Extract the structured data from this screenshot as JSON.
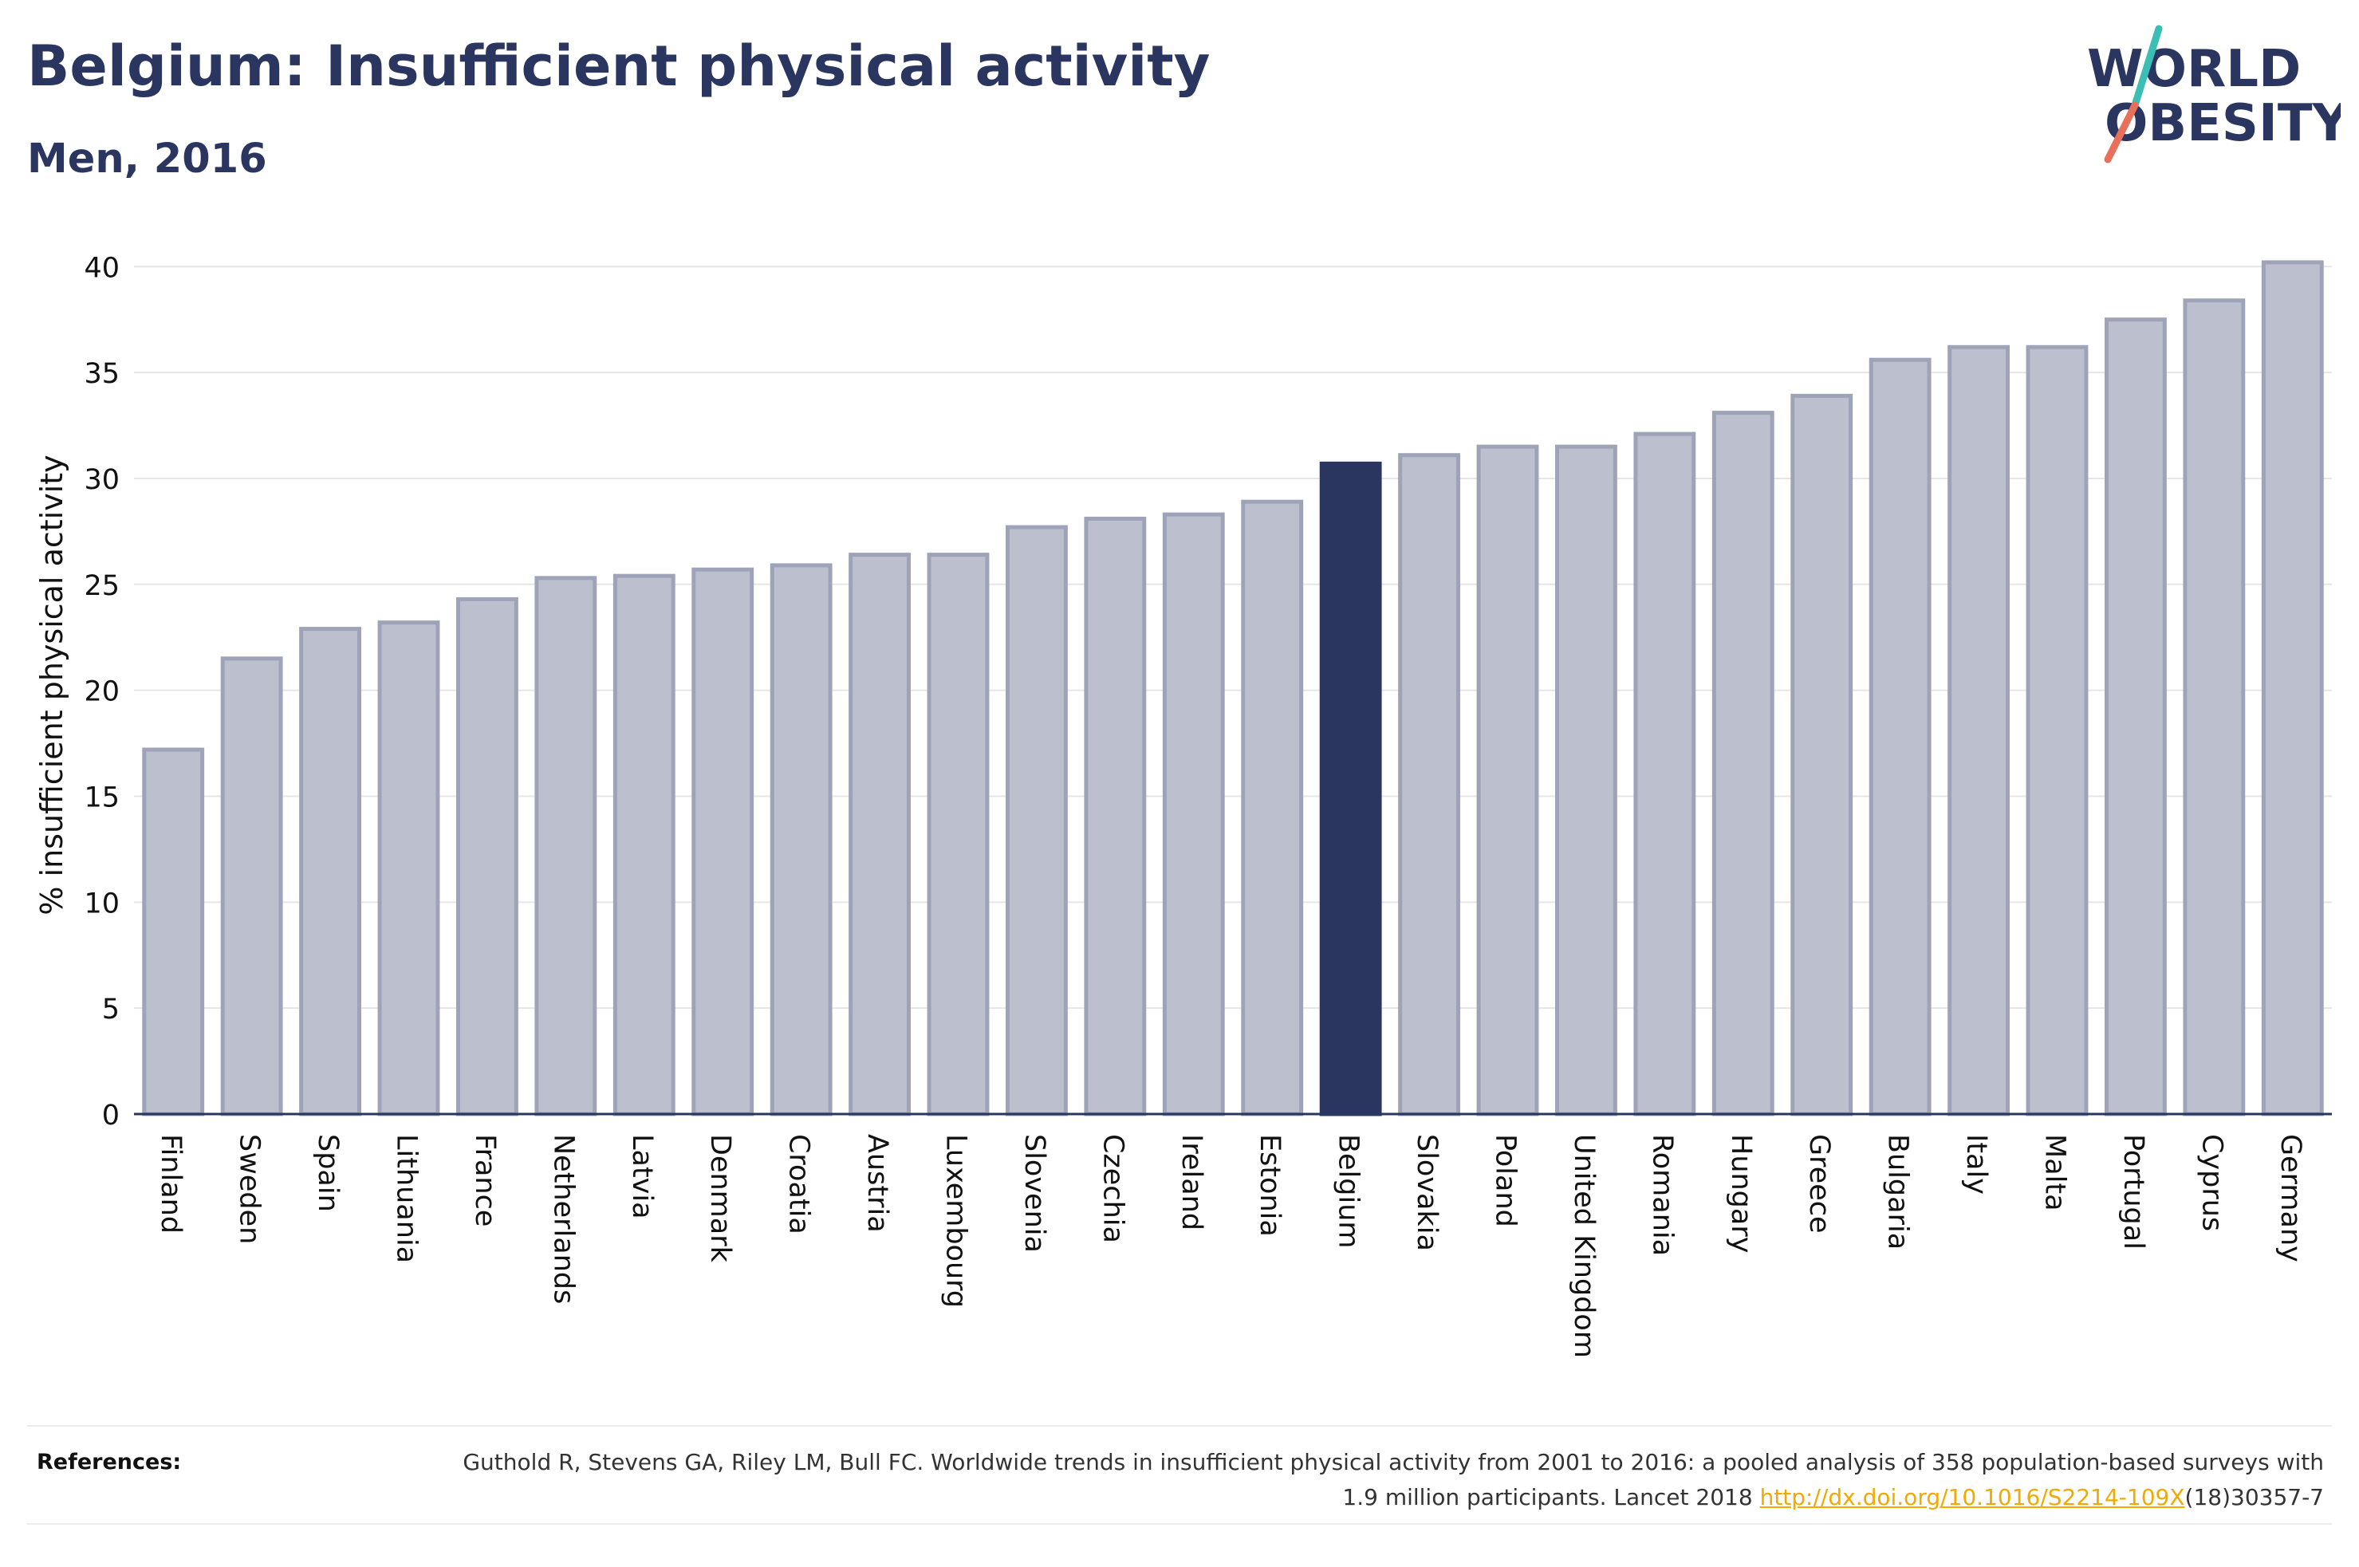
{
  "title": "Belgium: Insufficient physical activity",
  "subtitle": "Men, 2016",
  "logo": {
    "line1": "WORLD",
    "line2": "OBESITY",
    "accent_colors": [
      "#3bbfb5",
      "#e8705a"
    ]
  },
  "chart_data": {
    "type": "bar",
    "title": "",
    "xlabel": "",
    "ylabel": "% insufficient physical activity",
    "ylim": [
      0,
      40.5
    ],
    "yticks": [
      0,
      5,
      10,
      15,
      20,
      25,
      30,
      35,
      40
    ],
    "grid": true,
    "highlight": "Belgium",
    "colors": {
      "bar": "#bcc0ce",
      "bar_edge": "#9ea3b8",
      "highlight": "#2a3560",
      "axis": "#2a3560",
      "grid": "#e6e6e6"
    },
    "categories": [
      "Finland",
      "Sweden",
      "Spain",
      "Lithuania",
      "France",
      "Netherlands",
      "Latvia",
      "Denmark",
      "Croatia",
      "Austria",
      "Luxembourg",
      "Slovenia",
      "Czechia",
      "Ireland",
      "Estonia",
      "Belgium",
      "Slovakia",
      "Poland",
      "United Kingdom",
      "Romania",
      "Hungary",
      "Greece",
      "Bulgaria",
      "Italy",
      "Malta",
      "Portugal",
      "Cyprus",
      "Germany"
    ],
    "values": [
      17.2,
      21.5,
      22.9,
      23.2,
      24.3,
      25.3,
      25.4,
      25.7,
      25.9,
      26.4,
      26.4,
      27.7,
      28.1,
      28.3,
      28.9,
      30.7,
      31.1,
      31.5,
      31.5,
      32.1,
      33.1,
      33.9,
      35.6,
      36.2,
      36.2,
      37.5,
      38.4,
      40.2
    ]
  },
  "references": {
    "label": "References:",
    "text_before_link": "Guthold R, Stevens GA, Riley LM, Bull FC. Worldwide trends in insufficient physical activity from 2001 to 2016: a pooled analysis of 358 population-based surveys with 1.9 million participants. Lancet 2018 ",
    "link": "http://dx.doi.org/10.1016/S2214-109X",
    "text_after_link": "(18)30357-7"
  }
}
